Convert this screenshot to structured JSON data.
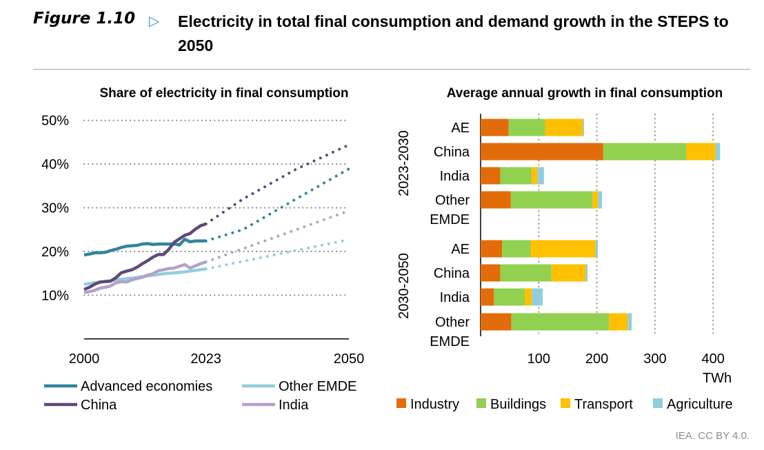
{
  "header": {
    "figure_label": "Figure 1.10",
    "arrow_icon": "triangle-right-icon",
    "title": "Electricity in total final consumption and demand growth in the STEPS to 2050"
  },
  "source": "IEA. CC BY 4.0.",
  "chart_data": [
    {
      "type": "line",
      "title": "Share of electricity in final consumption",
      "xlabel": "",
      "ylabel": "",
      "xlim": [
        2000,
        2050
      ],
      "ylim": [
        0,
        0.5
      ],
      "x_ticks": [
        "2000",
        "2023",
        "2050"
      ],
      "y_ticks": [
        "10%",
        "20%",
        "30%",
        "40%",
        "50%"
      ],
      "grid": "horizontal dotted",
      "legend_position": "bottom",
      "note_style": "solid = historical, dotted = projection",
      "series": [
        {
          "name": "Advanced economies",
          "color": "#31859c",
          "historical": {
            "x": [
              2000,
              2001,
              2002,
              2003,
              2004,
              2005,
              2006,
              2007,
              2008,
              2009,
              2010,
              2011,
              2012,
              2013,
              2014,
              2015,
              2016,
              2017,
              2018,
              2019,
              2020,
              2021,
              2022,
              2023
            ],
            "y": [
              19.2,
              19.4,
              19.7,
              19.7,
              19.8,
              20.2,
              20.5,
              20.9,
              21.2,
              21.3,
              21.4,
              21.7,
              21.8,
              21.6,
              21.7,
              21.7,
              21.7,
              21.7,
              21.5,
              22.8,
              22.2,
              22.4,
              22.4,
              22.4
            ]
          },
          "projection": {
            "x": [
              2023,
              2030,
              2040,
              2050
            ],
            "y": [
              22.4,
              25.0,
              32.0,
              38.9
            ]
          }
        },
        {
          "name": "Other EMDE",
          "color": "#93cddd",
          "historical": {
            "x": [
              2000,
              2003,
              2006,
              2009,
              2012,
              2015,
              2018,
              2020,
              2023
            ],
            "y": [
              12.5,
              13.0,
              13.5,
              13.9,
              14.4,
              14.9,
              15.2,
              15.5,
              16.0
            ]
          },
          "projection": {
            "x": [
              2023,
              2050
            ],
            "y": [
              16.0,
              22.7
            ]
          }
        },
        {
          "name": "China",
          "color": "#5f497a",
          "historical": {
            "x": [
              2000,
              2001,
              2002,
              2003,
              2004,
              2005,
              2006,
              2007,
              2008,
              2009,
              2010,
              2011,
              2012,
              2013,
              2014,
              2015,
              2016,
              2017,
              2018,
              2019,
              2020,
              2021,
              2022,
              2023
            ],
            "y": [
              11.3,
              11.8,
              12.5,
              13.0,
              13.1,
              13.2,
              14.0,
              15.1,
              15.5,
              15.8,
              16.4,
              17.2,
              17.9,
              18.7,
              19.3,
              19.3,
              20.5,
              22.1,
              22.9,
              23.7,
              24.1,
              25.1,
              25.9,
              26.3
            ]
          },
          "projection": {
            "x": [
              2023,
              2030,
              2040,
              2050
            ],
            "y": [
              26.3,
              32.0,
              38.8,
              44.4
            ]
          }
        },
        {
          "name": "India",
          "color": "#b3a2c7",
          "historical": {
            "x": [
              2000,
              2001,
              2002,
              2003,
              2004,
              2005,
              2006,
              2007,
              2008,
              2009,
              2010,
              2011,
              2012,
              2013,
              2014,
              2015,
              2016,
              2017,
              2018,
              2019,
              2020,
              2021,
              2022,
              2023
            ],
            "y": [
              10.6,
              10.8,
              11.1,
              11.6,
              11.8,
              12.1,
              12.8,
              13.1,
              13.0,
              13.5,
              13.8,
              14.1,
              14.6,
              14.9,
              15.6,
              15.8,
              16.1,
              16.2,
              16.6,
              17.0,
              16.2,
              16.7,
              17.2,
              17.6
            ]
          },
          "projection": {
            "x": [
              2023,
              2050
            ],
            "y": [
              17.6,
              29.3
            ]
          }
        }
      ]
    },
    {
      "type": "bar",
      "orientation": "horizontal-stacked",
      "title": "Average annual growth in final consumption",
      "xlabel": "TWh",
      "xlim": [
        0,
        450
      ],
      "x_ticks": [
        "100",
        "200",
        "300",
        "400"
      ],
      "grid": "vertical dotted",
      "legend_position": "bottom",
      "groups": [
        {
          "label": "2023-2030",
          "categories": [
            "AE",
            "China",
            "India",
            "Other EMDE"
          ]
        },
        {
          "label": "2030-2050",
          "categories": [
            "AE",
            "China",
            "India",
            "Other EMDE"
          ]
        }
      ],
      "series": [
        {
          "name": "Industry",
          "color": "#e36c0a",
          "values": [
            [
              48,
              211,
              34,
              52
            ],
            [
              37,
              34,
              23,
              53
            ]
          ]
        },
        {
          "name": "Buildings",
          "color": "#92d050",
          "values": [
            [
              63,
              143,
              54,
              141
            ],
            [
              49,
              88,
              53,
              168
            ]
          ]
        },
        {
          "name": "Transport",
          "color": "#ffc000",
          "values": [
            [
              65,
              50,
              10,
              9
            ],
            [
              112,
              59,
              12,
              32
            ]
          ]
        },
        {
          "name": "Agriculture",
          "color": "#92cddc",
          "values": [
            [
              2,
              8,
              11,
              7
            ],
            [
              4,
              3,
              19,
              7
            ]
          ]
        }
      ]
    }
  ]
}
